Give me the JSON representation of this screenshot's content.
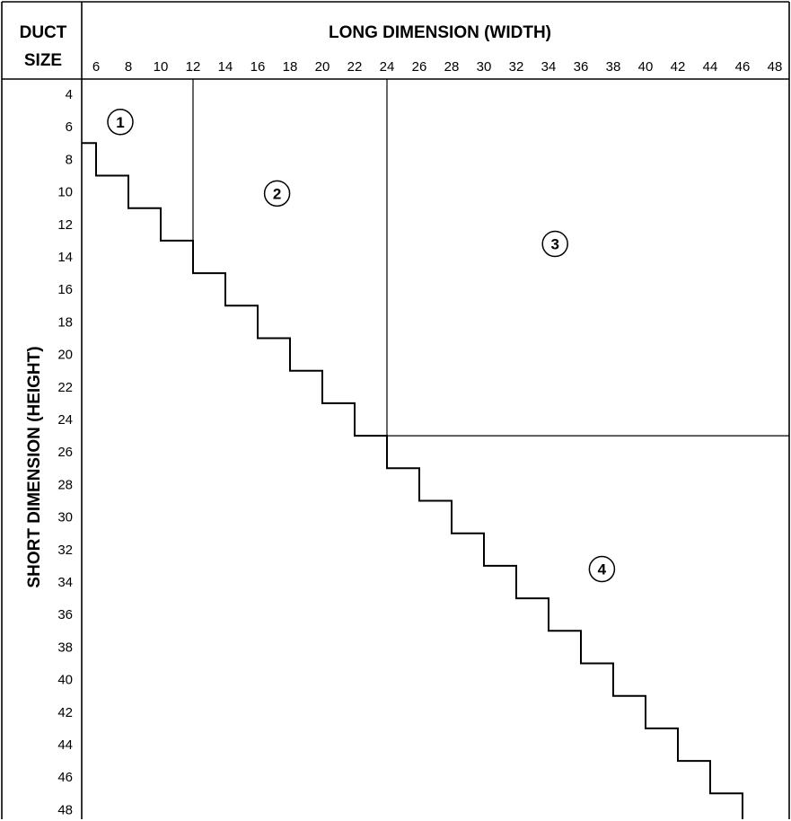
{
  "header": {
    "corner_line1": "DUCT",
    "corner_line2": "SIZE",
    "top_title": "LONG DIMENSION (WIDTH)",
    "side_title": "SHORT DIMENSION (HEIGHT)"
  },
  "chart_data": {
    "type": "table",
    "x_ticks": [
      6,
      8,
      10,
      12,
      14,
      16,
      18,
      20,
      22,
      24,
      26,
      28,
      30,
      32,
      34,
      36,
      38,
      40,
      42,
      44,
      46,
      48
    ],
    "y_ticks": [
      4,
      6,
      8,
      10,
      12,
      14,
      16,
      18,
      20,
      22,
      24,
      26,
      28,
      30,
      32,
      34,
      36,
      38,
      40,
      42,
      44,
      46,
      48
    ],
    "zones": [
      {
        "label": "1",
        "width_range": [
          6,
          12
        ],
        "height_range": [
          4,
          6
        ]
      },
      {
        "label": "2",
        "width_range": [
          14,
          24
        ],
        "height_range": [
          4,
          24
        ]
      },
      {
        "label": "3",
        "width_range": [
          26,
          48
        ],
        "height_range": [
          4,
          24
        ]
      },
      {
        "label": "4",
        "width_range": [
          26,
          48
        ],
        "height_range": [
          26,
          48
        ]
      }
    ],
    "zone_boundaries": {
      "vertical_width_lines": [
        13,
        25
      ],
      "horizontal_height_line": 25
    }
  }
}
